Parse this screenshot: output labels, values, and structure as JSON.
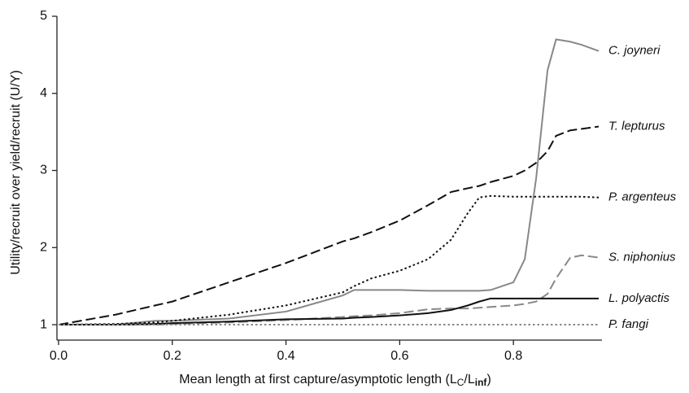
{
  "chart_data": {
    "type": "line",
    "x_label": [
      "Mean length at first capture/asymptotic length (L",
      "C",
      "/L",
      "inf",
      ")"
    ],
    "y_label": "Utility/recruit over yield/recruit (U/Y)",
    "xlim": [
      0,
      0.95
    ],
    "ylim": [
      0.8,
      5
    ],
    "xticks": [
      {
        "value": 0,
        "label": "0.0"
      },
      0.2,
      0.4,
      0.6,
      0.8
    ],
    "yticks": [
      1,
      2,
      3,
      4,
      5
    ],
    "x": [
      0,
      0.1,
      0.17,
      0.2,
      0.3,
      0.4,
      0.5,
      0.52,
      0.55,
      0.6,
      0.65,
      0.69,
      0.72,
      0.74,
      0.76,
      0.8,
      0.82,
      0.84,
      0.86,
      0.875,
      0.9,
      0.92,
      0.95
    ],
    "series": [
      {
        "name": "C.  joyneri",
        "color": "#888888",
        "dash": "solid",
        "values": [
          1,
          1,
          1.05,
          1.05,
          1.08,
          1.17,
          1.38,
          1.45,
          1.45,
          1.45,
          1.44,
          1.44,
          1.44,
          1.44,
          1.45,
          1.55,
          1.85,
          2.9,
          4.3,
          4.7,
          4.67,
          4.63,
          4.55
        ]
      },
      {
        "name": "T. lepturus",
        "color": "#111111",
        "dash": "dashed",
        "values": [
          1,
          1.13,
          1.25,
          1.3,
          1.55,
          1.8,
          2.08,
          2.12,
          2.2,
          2.35,
          2.55,
          2.72,
          2.77,
          2.8,
          2.85,
          2.93,
          3.0,
          3.1,
          3.25,
          3.45,
          3.52,
          3.54,
          3.57
        ]
      },
      {
        "name": "P. argenteus",
        "color": "#111111",
        "dash": "dotted",
        "values": [
          1,
          1.01,
          1.03,
          1.05,
          1.13,
          1.25,
          1.42,
          1.5,
          1.6,
          1.7,
          1.85,
          2.1,
          2.45,
          2.65,
          2.67,
          2.66,
          2.66,
          2.66,
          2.66,
          2.66,
          2.66,
          2.66,
          2.65
        ]
      },
      {
        "name": "S. niphonius",
        "color": "#888888",
        "dash": "dashed",
        "values": [
          1,
          1,
          1,
          1.01,
          1.03,
          1.06,
          1.1,
          1.11,
          1.12,
          1.15,
          1.2,
          1.21,
          1.21,
          1.22,
          1.23,
          1.25,
          1.27,
          1.3,
          1.4,
          1.6,
          1.87,
          1.9,
          1.87
        ]
      },
      {
        "name": "L. polyactis",
        "color": "#111111",
        "dash": "solid",
        "values": [
          1,
          1,
          1.01,
          1.02,
          1.04,
          1.07,
          1.08,
          1.09,
          1.1,
          1.12,
          1.15,
          1.19,
          1.25,
          1.3,
          1.34,
          1.34,
          1.34,
          1.34,
          1.34,
          1.34,
          1.34,
          1.34,
          1.34
        ]
      },
      {
        "name": "P. fangi",
        "color": "#888888",
        "dash": "dotted",
        "values": [
          1,
          1,
          1,
          1,
          1,
          1,
          1,
          1,
          1,
          1,
          1,
          1,
          1,
          1,
          1,
          1,
          1,
          1,
          1,
          1,
          1,
          1,
          1
        ]
      }
    ]
  }
}
